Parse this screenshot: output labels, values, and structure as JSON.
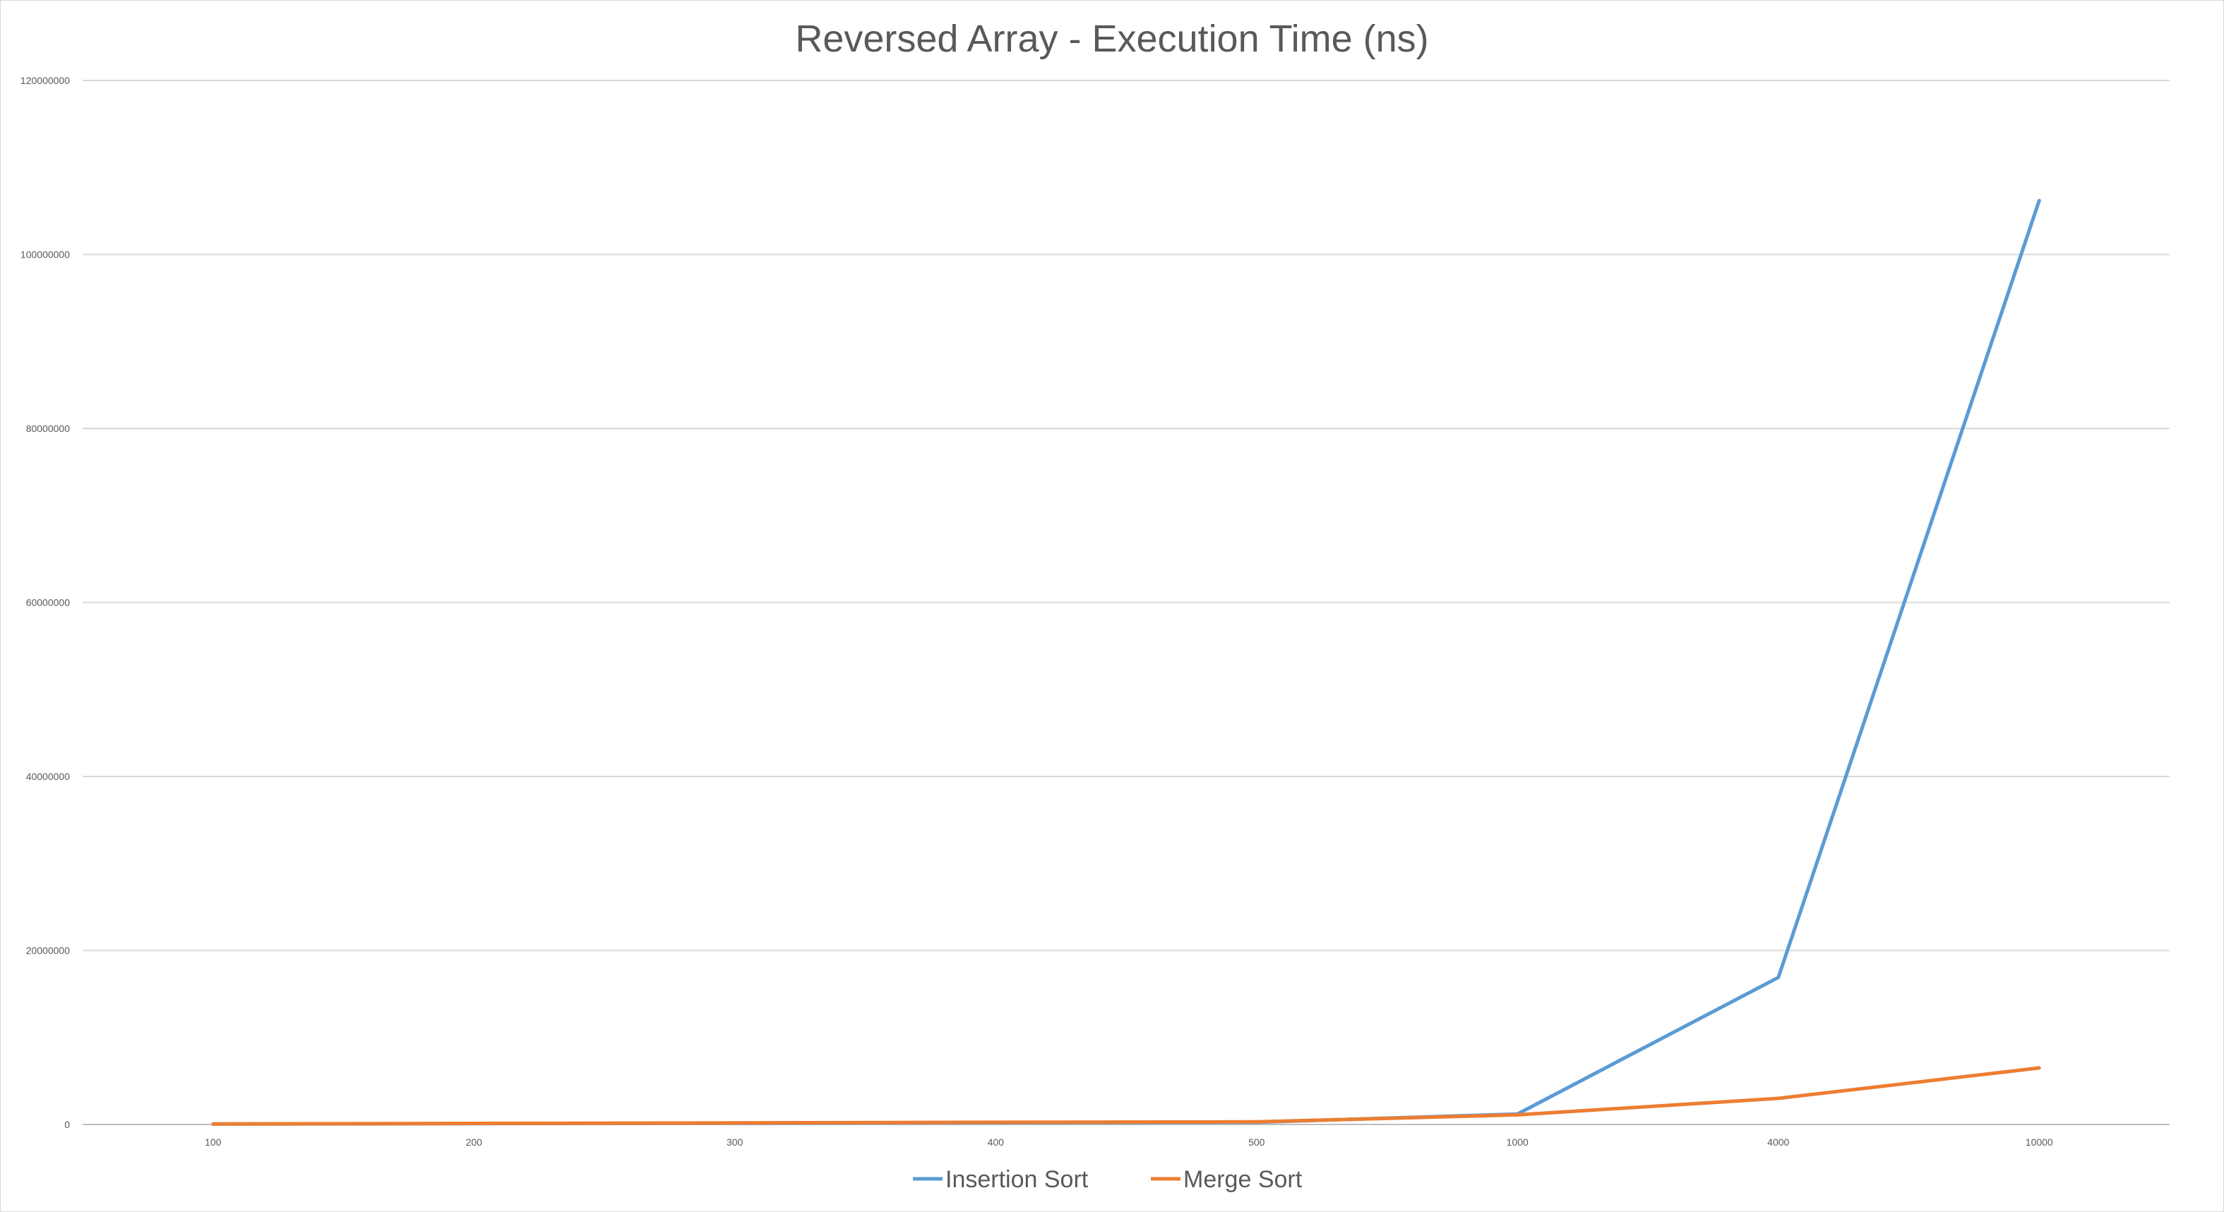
{
  "chart_data": {
    "type": "line",
    "title": "Reversed Array - Execution Time (ns)",
    "xlabel": "",
    "ylabel": "",
    "categories": [
      "100",
      "200",
      "300",
      "400",
      "500",
      "1000",
      "4000",
      "10000"
    ],
    "ylim": [
      0,
      120000000
    ],
    "yticks": [
      0,
      20000000,
      40000000,
      60000000,
      80000000,
      100000000,
      120000000
    ],
    "ytick_labels": [
      "0",
      "20000000",
      "40000000",
      "60000000",
      "80000000",
      "100000000",
      "120000000"
    ],
    "grid": true,
    "legend_position": "bottom",
    "series": [
      {
        "name": "Insertion Sort",
        "color": "#5b9bd5",
        "values": [
          50000,
          100000,
          150000,
          200000,
          250000,
          1200000,
          16900000,
          106200000
        ]
      },
      {
        "name": "Merge Sort",
        "color": "#ed7d31",
        "values": [
          60000,
          120000,
          180000,
          250000,
          300000,
          1100000,
          3000000,
          6500000
        ]
      }
    ]
  }
}
